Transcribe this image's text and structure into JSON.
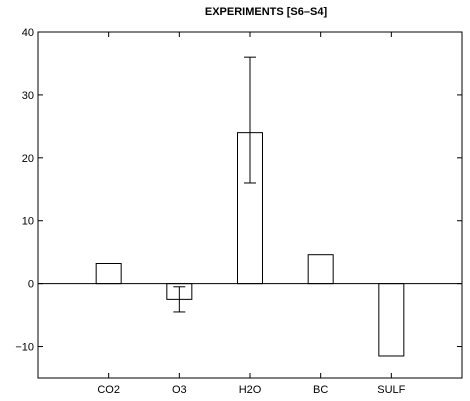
{
  "chart_data": {
    "type": "bar",
    "title": "EXPERIMENTS [S6–S4]",
    "xlabel": "",
    "ylabel": "",
    "categories": [
      "CO2",
      "O3",
      "H2O",
      "BC",
      "SULF"
    ],
    "values": [
      3.2,
      -2.5,
      24.0,
      4.6,
      -11.5
    ],
    "error_bars": [
      null,
      [
        -4.5,
        -0.5
      ],
      [
        16.0,
        36.0
      ],
      null,
      null
    ],
    "ylim": [
      -15,
      40
    ],
    "yticks": [
      -10,
      0,
      10,
      20,
      30,
      40
    ],
    "grid": false,
    "colors": {
      "bar_fill": "#ffffff",
      "bar_stroke": "#000000",
      "axis": "#000000"
    }
  }
}
